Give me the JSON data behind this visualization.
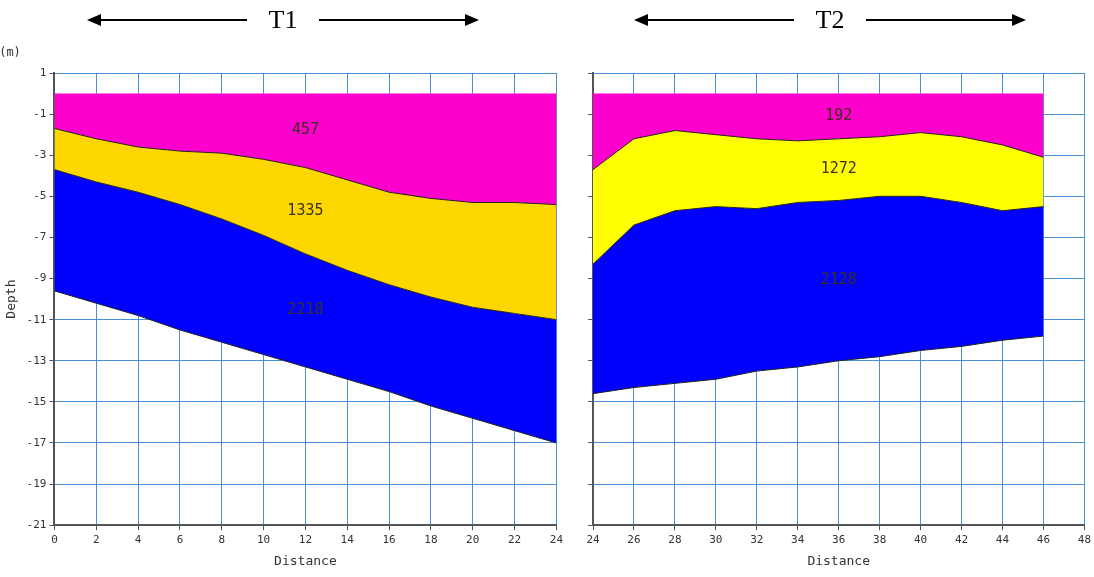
{
  "chart_data": [
    {
      "type": "area",
      "title": "T1",
      "xlabel": "Distance",
      "ylabel": "Depth",
      "stacked": true,
      "grid": true,
      "marker": "none",
      "x": [
        0,
        2,
        4,
        6,
        8,
        10,
        12,
        14,
        16,
        18,
        20,
        22,
        24
      ],
      "series": [
        {
          "color": "#ff00cc",
          "values": [
            -1.7,
            -2.2,
            -2.6,
            -2.8,
            -2.9,
            -3.2,
            -3.6,
            -4.2,
            -4.8,
            -5.1,
            -5.3,
            -5.3,
            -5.4
          ]
        },
        {
          "color": "#ffd700",
          "values": [
            -2.0,
            -2.1,
            -2.2,
            -2.6,
            -3.2,
            -3.7,
            -4.2,
            -4.4,
            -4.5,
            -4.8,
            -5.1,
            -5.4,
            -5.6
          ]
        },
        {
          "color": "#0000ff",
          "values": [
            -5.9,
            -5.9,
            -6.0,
            -6.1,
            -6.0,
            -5.8,
            -5.5,
            -5.3,
            -5.2,
            -5.3,
            -5.4,
            -5.7,
            -6.0
          ]
        }
      ],
      "xlim": [
        0,
        24
      ],
      "xticks": [
        0,
        2,
        4,
        6,
        8,
        10,
        12,
        14,
        16,
        18,
        20,
        22,
        24
      ],
      "ylim": [
        -21,
        1
      ],
      "yticks": [
        1,
        -1,
        -3,
        -5,
        -7,
        -9,
        -11,
        -13,
        -15,
        -17,
        -19,
        -21
      ],
      "annotations": [
        "(m)",
        "457",
        "1335",
        "2218"
      ]
    },
    {
      "type": "area",
      "title": "T2",
      "xlabel": "Distance",
      "stacked": true,
      "grid": true,
      "marker": "none",
      "tick_labels": "x",
      "x": [
        24,
        26,
        28,
        30,
        32,
        34,
        36,
        38,
        40,
        42,
        44,
        46
      ],
      "series": [
        {
          "color": "#ff00cc",
          "values": [
            -3.7,
            -2.2,
            -1.8,
            -2.0,
            -2.2,
            -2.3,
            -2.2,
            -2.1,
            -1.9,
            -2.1,
            -2.5,
            -3.1
          ]
        },
        {
          "color": "#ffff00",
          "values": [
            -4.6,
            -4.2,
            -3.9,
            -3.5,
            -3.4,
            -3.0,
            -3.0,
            -2.9,
            -3.1,
            -3.2,
            -3.2,
            -2.4
          ]
        },
        {
          "color": "#0000ff",
          "values": [
            -6.3,
            -7.9,
            -8.4,
            -8.4,
            -7.9,
            -8.0,
            -7.8,
            -7.8,
            -7.5,
            -7.0,
            -6.3,
            -6.3
          ]
        }
      ],
      "xlim": [
        24,
        48
      ],
      "xticks": [
        24,
        26,
        28,
        30,
        32,
        34,
        36,
        38,
        40,
        42,
        44,
        46,
        48
      ],
      "ylim": [
        -21,
        1
      ],
      "yticks": [
        1,
        -1,
        -3,
        -5,
        -7,
        -9,
        -11,
        -13,
        -15,
        -17,
        -19,
        -21
      ],
      "annotations": [
        "192",
        "1272",
        "2128"
      ]
    }
  ]
}
